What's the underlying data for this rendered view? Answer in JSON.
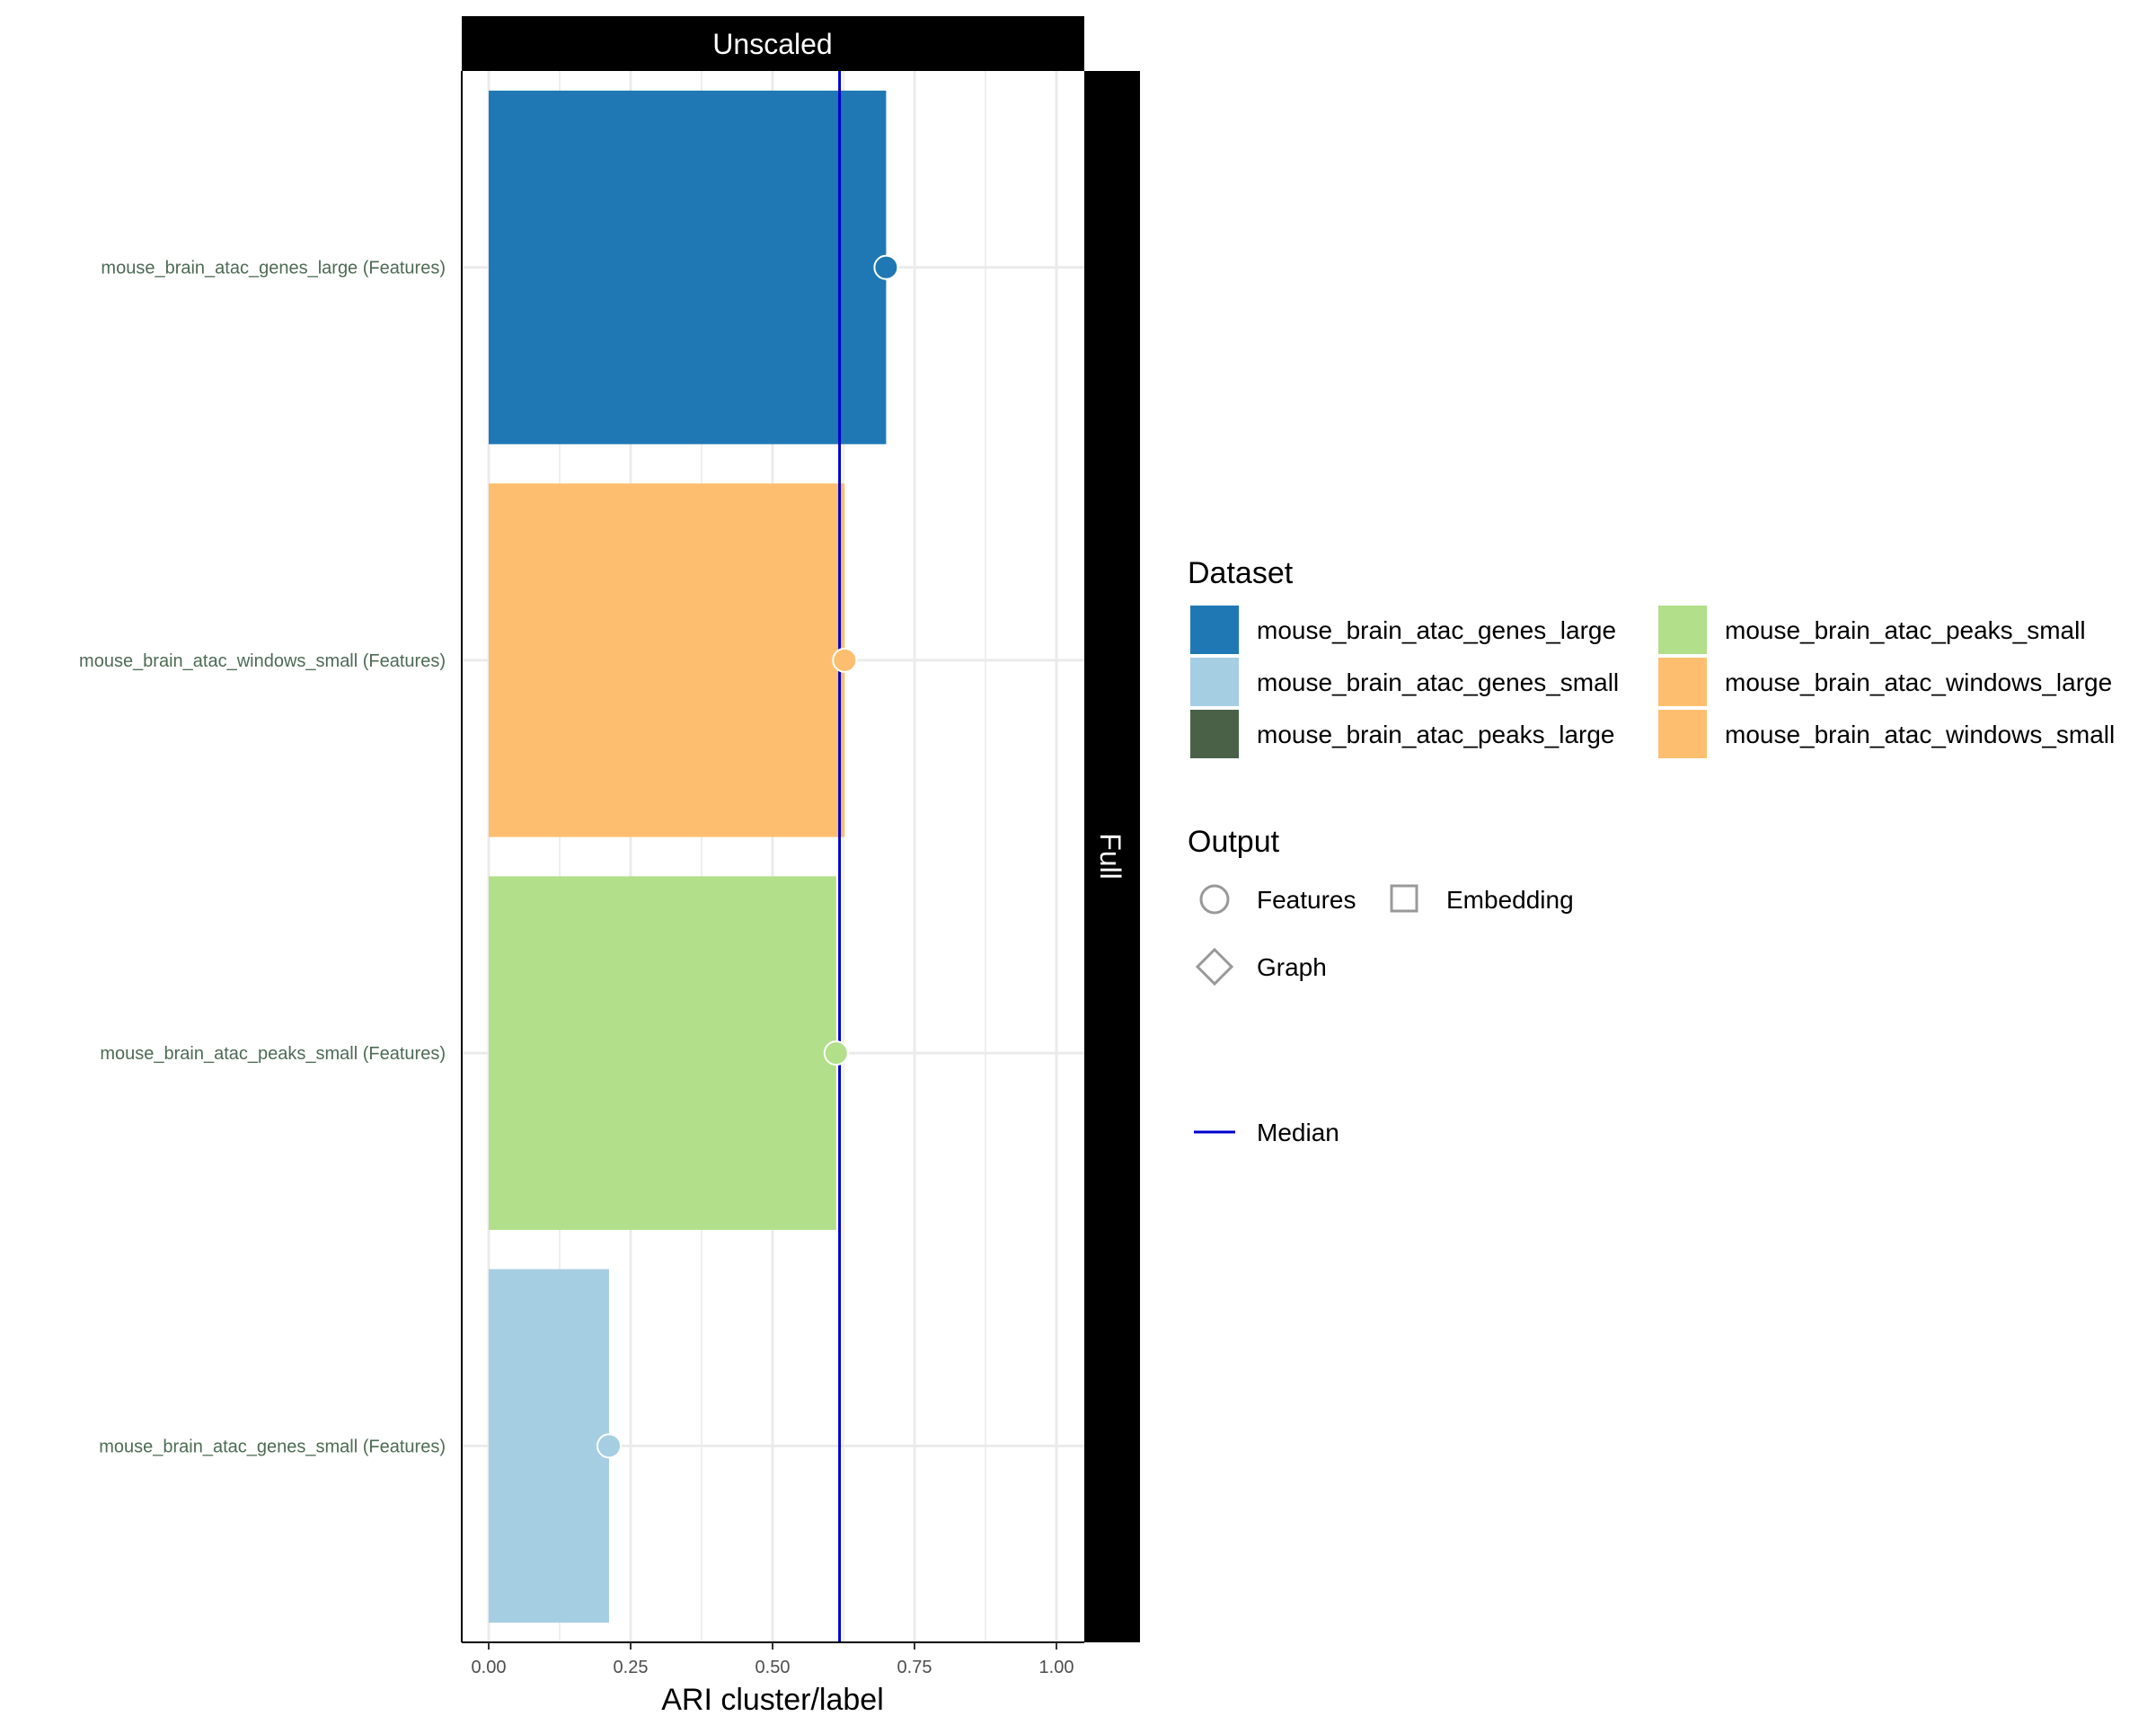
{
  "chart_data": {
    "type": "bar",
    "orientation": "horizontal",
    "facet_top": "Unscaled",
    "facet_right": "Full",
    "xlabel": "ARI cluster/label",
    "ylabel": "",
    "xlim": [
      0,
      1.05
    ],
    "x_ticks": [
      0,
      0.25,
      0.5,
      0.75,
      1.0
    ],
    "x_tick_labels": [
      "0.00",
      "0.25",
      "0.50",
      "0.75",
      "1.00"
    ],
    "categories": [
      "mouse_brain_atac_genes_large (Features)",
      "mouse_brain_atac_windows_small (Features)",
      "mouse_brain_atac_peaks_small (Features)",
      "mouse_brain_atac_genes_small (Features)"
    ],
    "values": [
      0.7,
      0.627,
      0.612,
      0.212
    ],
    "bar_colors": [
      "#1f78b4",
      "#fdbf6f",
      "#b2df8a",
      "#a6cee3"
    ],
    "point_shape": "circle",
    "median": 0.618,
    "median_color": "#0000cc",
    "grid": true,
    "legend": {
      "dataset_title": "Dataset",
      "dataset_items": [
        {
          "label": "mouse_brain_atac_genes_large",
          "color": "#1f78b4"
        },
        {
          "label": "mouse_brain_atac_genes_small",
          "color": "#a6cee3"
        },
        {
          "label": "mouse_brain_atac_peaks_large",
          "color": "#4a6148"
        },
        {
          "label": "mouse_brain_atac_peaks_small",
          "color": "#b2df8a"
        },
        {
          "label": "mouse_brain_atac_windows_large",
          "color": "#fdbf6f"
        },
        {
          "label": "mouse_brain_atac_windows_small",
          "color": "#fdbf6f"
        }
      ],
      "output_title": "Output",
      "output_items": [
        {
          "label": "Features",
          "shape": "circle"
        },
        {
          "label": "Embedding",
          "shape": "square"
        },
        {
          "label": "Graph",
          "shape": "diamond"
        }
      ],
      "median_label": "Median",
      "placement": "right"
    }
  }
}
